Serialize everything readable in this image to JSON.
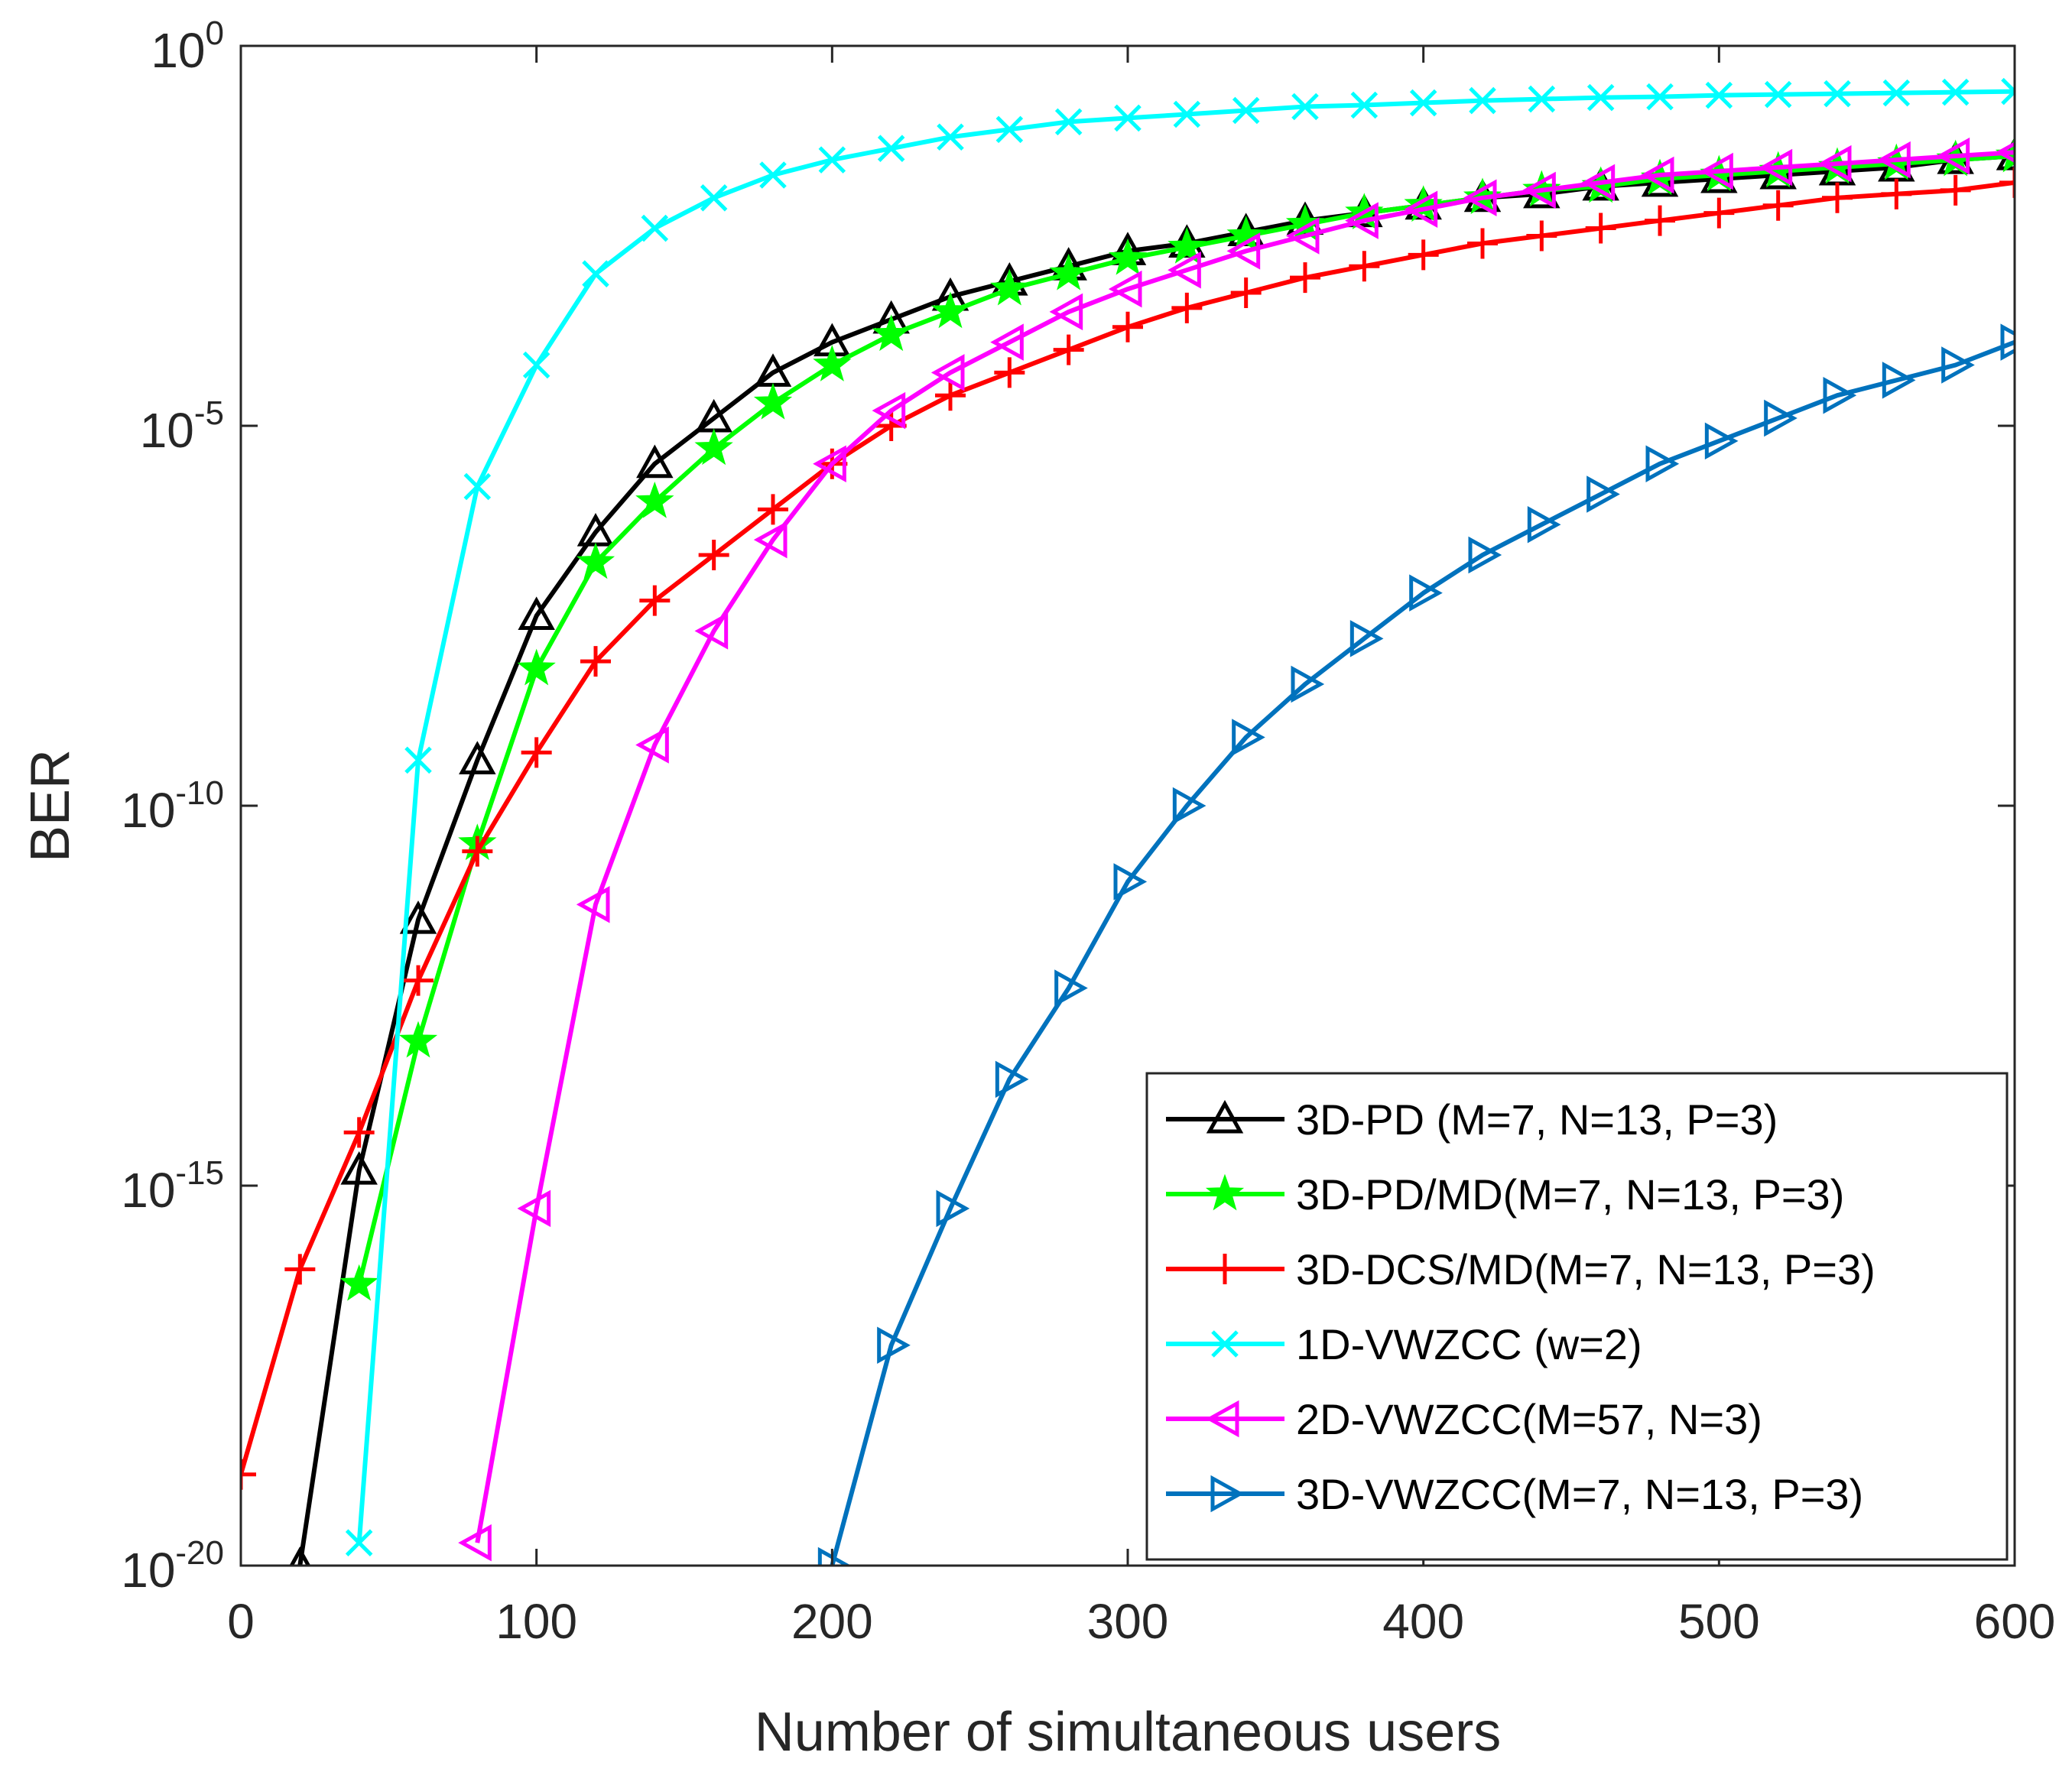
{
  "chart_data": {
    "type": "line",
    "title": "",
    "xlabel": "Number of simultaneous users",
    "ylabel": "BER",
    "xlim": [
      0,
      600
    ],
    "ylim_exp": [
      -20,
      0
    ],
    "yscale": "log",
    "grid": false,
    "legend_position": "bottom-right",
    "x_ticks": [
      {
        "value": 0,
        "label": "0"
      },
      {
        "value": 100,
        "label": "100"
      },
      {
        "value": 200,
        "label": "200"
      },
      {
        "value": 300,
        "label": "300"
      },
      {
        "value": 400,
        "label": "400"
      },
      {
        "value": 500,
        "label": "500"
      },
      {
        "value": 600,
        "label": "600"
      }
    ],
    "y_ticks": [
      {
        "exp": 0,
        "base": "10",
        "power": "0"
      },
      {
        "exp": -5,
        "base": "10",
        "power": "-5"
      },
      {
        "exp": -10,
        "base": "10",
        "power": "-10"
      },
      {
        "exp": -15,
        "base": "10",
        "power": "-15"
      },
      {
        "exp": -20,
        "base": "10",
        "power": "-20"
      }
    ],
    "series": [
      {
        "name": "3D-PD (M=7, N=13, P=3)",
        "color": "#000000",
        "marker": "triangle-up",
        "x": [
          20,
          40,
          60,
          80,
          100,
          120,
          140,
          160,
          180,
          200,
          220,
          240,
          260,
          280,
          300,
          320,
          340,
          360,
          380,
          400,
          420,
          440,
          460,
          480,
          500,
          520,
          540,
          560,
          580,
          600
        ],
        "log_y": [
          -20.0,
          -14.8,
          -11.5,
          -9.4,
          -7.5,
          -6.4,
          -5.5,
          -4.9,
          -4.3,
          -3.9,
          -3.6,
          -3.3,
          -3.1,
          -2.9,
          -2.7,
          -2.6,
          -2.45,
          -2.3,
          -2.2,
          -2.1,
          -2.0,
          -1.95,
          -1.85,
          -1.8,
          -1.75,
          -1.7,
          -1.65,
          -1.6,
          -1.5,
          -1.45
        ]
      },
      {
        "name": "3D-PD/MD(M=7, N=13, P=3)",
        "color": "#00ff00",
        "marker": "star",
        "x": [
          40,
          60,
          80,
          100,
          120,
          140,
          160,
          180,
          200,
          220,
          240,
          260,
          280,
          300,
          320,
          340,
          360,
          380,
          400,
          420,
          440,
          460,
          480,
          500,
          520,
          540,
          560,
          580,
          600
        ],
        "log_y": [
          -16.3,
          -13.1,
          -10.5,
          -8.2,
          -6.8,
          -6.0,
          -5.3,
          -4.7,
          -4.2,
          -3.8,
          -3.5,
          -3.2,
          -3.0,
          -2.8,
          -2.65,
          -2.5,
          -2.35,
          -2.2,
          -2.1,
          -2.0,
          -1.9,
          -1.85,
          -1.75,
          -1.7,
          -1.65,
          -1.6,
          -1.55,
          -1.5,
          -1.45
        ]
      },
      {
        "name": "3D-DCS/MD(M=7, N=13, P=3)",
        "color": "#ff0000",
        "marker": "plus",
        "x": [
          0,
          20,
          40,
          60,
          80,
          100,
          120,
          140,
          160,
          180,
          200,
          220,
          240,
          260,
          280,
          300,
          320,
          340,
          360,
          380,
          400,
          420,
          440,
          460,
          480,
          500,
          520,
          540,
          560,
          580,
          600
        ],
        "log_y": [
          -18.8,
          -16.1,
          -14.3,
          -12.3,
          -10.6,
          -9.3,
          -8.1,
          -7.3,
          -6.7,
          -6.1,
          -5.5,
          -5.0,
          -4.6,
          -4.3,
          -4.0,
          -3.7,
          -3.45,
          -3.25,
          -3.05,
          -2.9,
          -2.75,
          -2.6,
          -2.5,
          -2.4,
          -2.3,
          -2.2,
          -2.1,
          -2.0,
          -1.95,
          -1.9,
          -1.8
        ]
      },
      {
        "name": "1D-VWZCC (w=2)",
        "color": "#00ffff",
        "marker": "cross",
        "x": [
          40,
          60,
          80,
          100,
          120,
          140,
          160,
          180,
          200,
          220,
          240,
          260,
          280,
          300,
          320,
          340,
          360,
          380,
          400,
          420,
          440,
          460,
          480,
          500,
          520,
          540,
          560,
          580,
          600
        ],
        "log_y": [
          -19.7,
          -9.4,
          -5.8,
          -4.2,
          -3.0,
          -2.4,
          -2.0,
          -1.7,
          -1.5,
          -1.35,
          -1.2,
          -1.1,
          -1.0,
          -0.95,
          -0.9,
          -0.85,
          -0.8,
          -0.78,
          -0.75,
          -0.72,
          -0.7,
          -0.68,
          -0.67,
          -0.65,
          -0.64,
          -0.63,
          -0.62,
          -0.61,
          -0.6
        ]
      },
      {
        "name": "2D-VWZCC(M=57, N=3)",
        "color": "#ff00ff",
        "marker": "triangle-left",
        "x": [
          80,
          100,
          120,
          140,
          160,
          180,
          200,
          220,
          240,
          260,
          280,
          300,
          320,
          340,
          360,
          380,
          400,
          420,
          440,
          460,
          480,
          500,
          520,
          540,
          560,
          580,
          600
        ],
        "log_y": [
          -19.7,
          -15.3,
          -11.3,
          -9.2,
          -7.7,
          -6.5,
          -5.5,
          -4.8,
          -4.3,
          -3.9,
          -3.5,
          -3.2,
          -2.95,
          -2.7,
          -2.5,
          -2.3,
          -2.15,
          -2.0,
          -1.9,
          -1.8,
          -1.7,
          -1.65,
          -1.6,
          -1.55,
          -1.5,
          -1.45,
          -1.4
        ]
      },
      {
        "name": "3D-VWZCC(M=7, N=13, P=3)",
        "color": "#0072bd",
        "marker": "triangle-right",
        "x": [
          200,
          220,
          240,
          260,
          280,
          300,
          320,
          340,
          360,
          380,
          400,
          420,
          440,
          460,
          480,
          500,
          520,
          540,
          560,
          580,
          600
        ],
        "log_y": [
          -20.0,
          -17.1,
          -15.3,
          -13.6,
          -12.4,
          -11.0,
          -10.0,
          -9.1,
          -8.4,
          -7.8,
          -7.2,
          -6.7,
          -6.3,
          -5.9,
          -5.5,
          -5.2,
          -4.9,
          -4.6,
          -4.4,
          -4.2,
          -3.9
        ]
      }
    ]
  }
}
